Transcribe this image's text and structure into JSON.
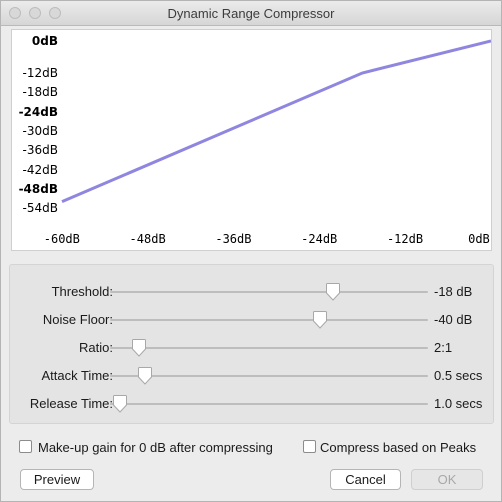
{
  "window": {
    "title": "Dynamic Range Compressor"
  },
  "graph": {
    "y_ticks": [
      {
        "label": "0dB",
        "bold": true
      },
      {
        "label": "-12dB",
        "bold": false
      },
      {
        "label": "-18dB",
        "bold": false
      },
      {
        "label": "-24dB",
        "bold": true
      },
      {
        "label": "-30dB",
        "bold": false
      },
      {
        "label": "-36dB",
        "bold": false
      },
      {
        "label": "-42dB",
        "bold": false
      },
      {
        "label": "-48dB",
        "bold": true
      },
      {
        "label": "-54dB",
        "bold": false
      }
    ],
    "x_ticks": [
      "-60dB",
      "-48dB",
      "-36dB",
      "-24dB",
      "-12dB",
      "0dB"
    ],
    "curve": {
      "input_db": [
        -60,
        -18,
        0
      ],
      "output_db": [
        -52,
        -12,
        0
      ]
    },
    "curve_color": "#8f86e0"
  },
  "controls": [
    {
      "label": "Threshold:",
      "value": "-18 dB",
      "fraction": 0.7
    },
    {
      "label": "Noise Floor:",
      "value": "-40 dB",
      "fraction": 0.66
    },
    {
      "label": "Ratio:",
      "value": "2:1",
      "fraction": 0.09
    },
    {
      "label": "Attack Time:",
      "value": "0.5 secs",
      "fraction": 0.11
    },
    {
      "label": "Release Time:",
      "value": "1.0 secs",
      "fraction": 0.03
    }
  ],
  "options": {
    "makeup_gain": {
      "label": "Make-up gain for 0 dB after compressing",
      "checked": false
    },
    "peaks": {
      "label": "Compress based on Peaks",
      "checked": false
    }
  },
  "buttons": {
    "preview": "Preview",
    "cancel": "Cancel",
    "ok": "OK"
  }
}
